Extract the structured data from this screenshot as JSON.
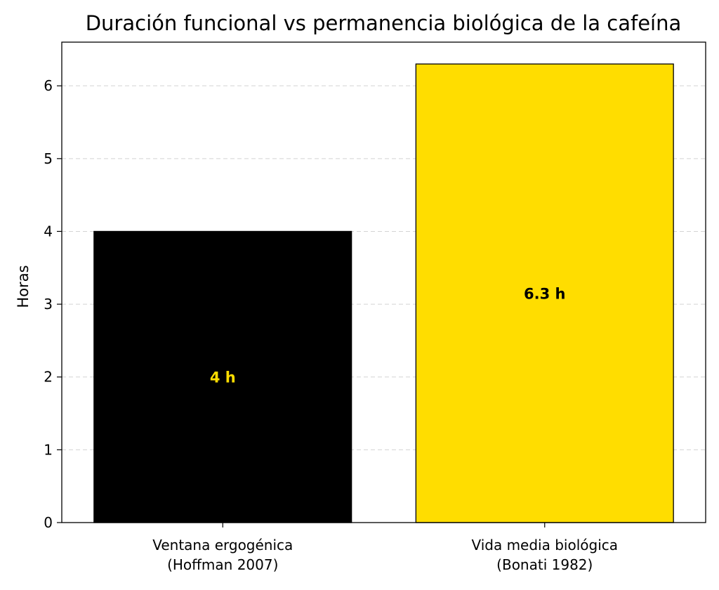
{
  "chart_data": {
    "type": "bar",
    "title": "Duración funcional vs permanencia biológica de la cafeína",
    "xlabel": "",
    "ylabel": "Horas",
    "ylim": [
      0,
      6.6
    ],
    "yticks": [
      0,
      1,
      2,
      3,
      4,
      5,
      6
    ],
    "grid": "horizontal dashed",
    "legend": "none",
    "categories": [
      [
        "Ventana ergogénica",
        "(Hoffman 2007)"
      ],
      [
        "Vida media biológica",
        "(Bonati 1982)"
      ]
    ],
    "values": [
      4,
      6.3
    ],
    "data_labels": [
      "4 h",
      "6.3 h"
    ],
    "bar_colors": [
      "#000000",
      "#FFDD00"
    ],
    "label_colors": [
      "#FFDD00",
      "#000000"
    ]
  }
}
